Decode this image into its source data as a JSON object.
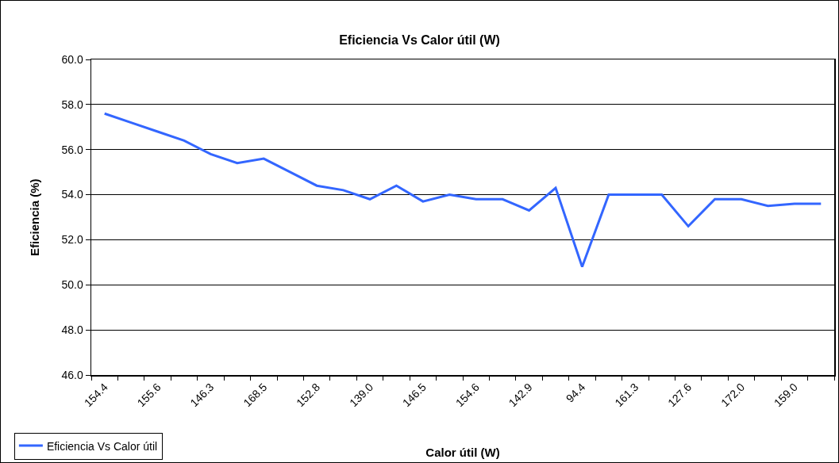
{
  "chart_data": {
    "type": "line",
    "title": "Eficiencia Vs Calor útil (W)",
    "xlabel": "Calor útil (W)",
    "ylabel": "Eficiencia (%)",
    "categories": [
      "154.4",
      null,
      "155.6",
      null,
      "146.3",
      null,
      "168.5",
      null,
      "152.8",
      null,
      "139.0",
      null,
      "146.5",
      null,
      "154.6",
      null,
      "142.9",
      null,
      "94.4",
      null,
      "161.3",
      null,
      "127.6",
      null,
      "172.0",
      null,
      "159.0",
      null
    ],
    "series": [
      {
        "name": "Eficiencia Vs Calor útil",
        "color": "#3366ff",
        "values": [
          57.6,
          57.2,
          56.8,
          56.4,
          55.8,
          55.4,
          55.6,
          55.0,
          54.4,
          54.2,
          53.8,
          54.4,
          53.7,
          54.0,
          53.8,
          53.8,
          53.3,
          54.3,
          50.8,
          54.0,
          54.0,
          54.0,
          52.6,
          53.8,
          53.8,
          53.5,
          53.6,
          53.6
        ]
      }
    ],
    "ylim": [
      46,
      60
    ],
    "yticks": [
      {
        "value": 46,
        "label": "46.0"
      },
      {
        "value": 48,
        "label": "48.0"
      },
      {
        "value": 50,
        "label": "50.0"
      },
      {
        "value": 52,
        "label": "52.0"
      },
      {
        "value": 54,
        "label": "54.0"
      },
      {
        "value": 56,
        "label": "56.0"
      },
      {
        "value": 58,
        "label": "58.0"
      },
      {
        "value": 60,
        "label": "60.0"
      }
    ],
    "grid": "y",
    "legend": "bottom left"
  }
}
